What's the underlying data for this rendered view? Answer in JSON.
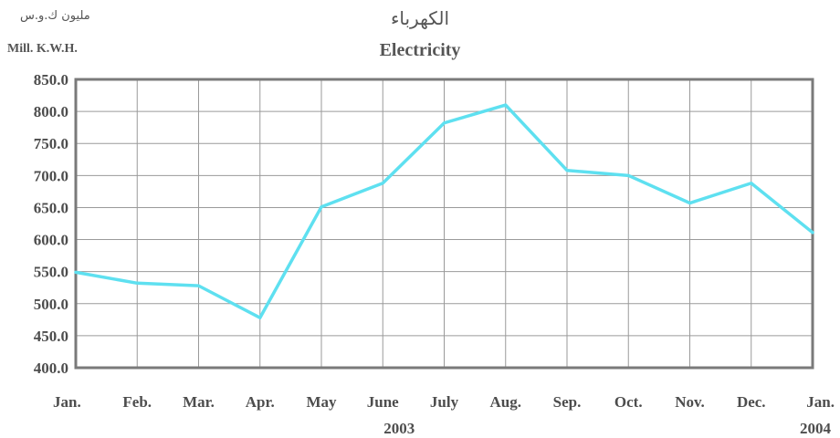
{
  "header": {
    "unit_ar": "مليون ك.و.س",
    "unit_en": "Mill. K.W.H.",
    "title_ar": "الكهرباء",
    "title_en": "Electricity"
  },
  "chart_data": {
    "type": "line",
    "title": "Electricity",
    "ylabel": "Mill. K.W.H.",
    "categories": [
      "Jan.",
      "Feb.",
      "Mar.",
      "Apr.",
      "May",
      "June",
      "July",
      "Aug.",
      "Sep.",
      "Oct.",
      "Nov.",
      "Dec.",
      "Jan."
    ],
    "year_labels": [
      {
        "index": 5,
        "label": "2003"
      },
      {
        "index": 12,
        "label": "2004"
      }
    ],
    "series": [
      {
        "values": [
          549,
          532,
          528,
          478,
          651,
          688,
          782,
          810,
          708,
          700,
          657,
          688,
          611
        ],
        "color": "#5ee0f0"
      }
    ],
    "ylim": [
      400,
      850
    ],
    "yticks": [
      "400.0",
      "450.0",
      "500.0",
      "550.0",
      "600.0",
      "650.0",
      "700.0",
      "750.0",
      "800.0",
      "850.0"
    ],
    "grid": true,
    "colors": {
      "line": "#5ee0f0",
      "grid": "#9a9a9a",
      "frame": "#7a7a7a",
      "text": "#4d4d4d"
    }
  }
}
